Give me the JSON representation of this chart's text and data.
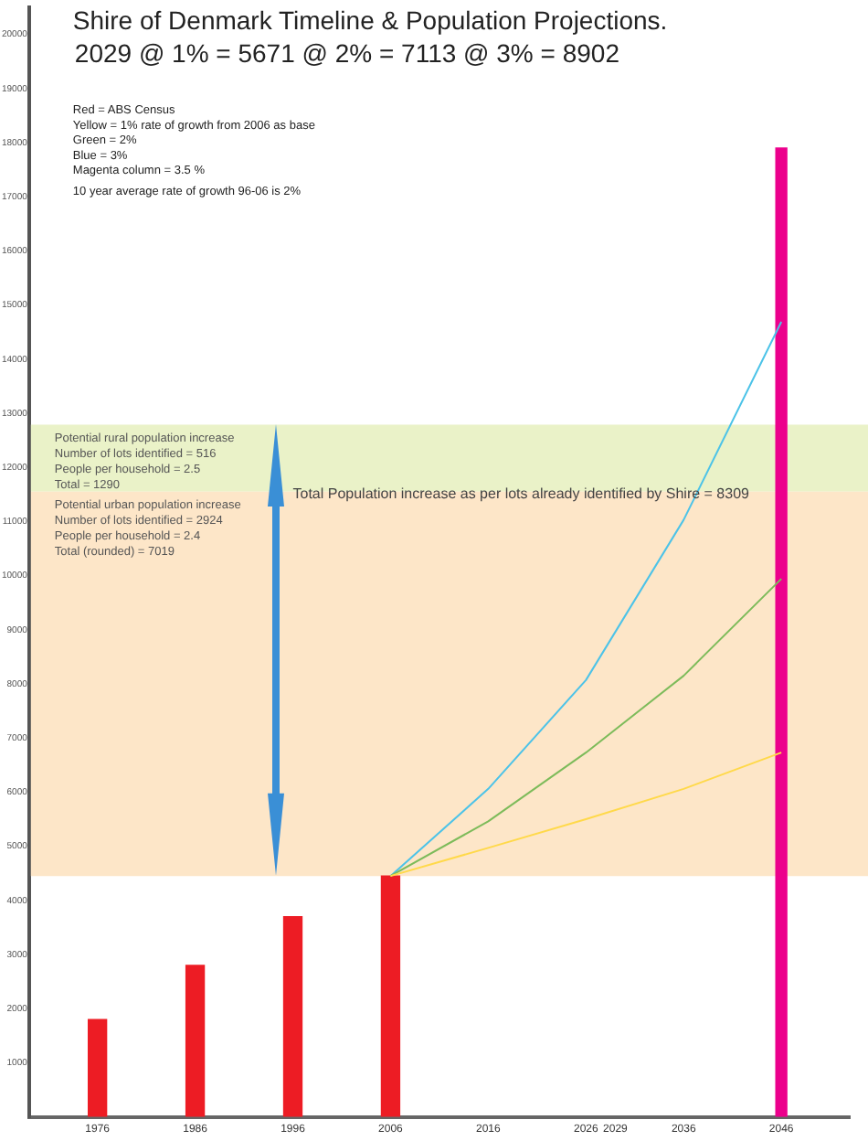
{
  "chart_data": {
    "type": "bar",
    "title": "Shire of Denmark Timeline & Population Projections.",
    "subtitle": "2029 @ 1% = 5671 @ 2% = 7113 @ 3% = 8902",
    "series": [
      {
        "color": "#ed1c24",
        "x": [
          1976,
          1986,
          1996,
          2006
        ],
        "values": [
          1800,
          2800,
          3700,
          4450
        ]
      },
      {
        "color": "#ec008c",
        "x": [
          2046
        ],
        "values": [
          17900
        ]
      },
      {
        "type": "line",
        "color": "#ffd94a",
        "x": [
          2006,
          2016,
          2026,
          2036,
          2046
        ],
        "values": [
          4450,
          4970,
          5500,
          6060,
          6730
        ]
      },
      {
        "type": "line",
        "color": "#7dbb5a",
        "x": [
          2006,
          2016,
          2026,
          2036,
          2046
        ],
        "values": [
          4450,
          5460,
          6730,
          8150,
          9940
        ]
      },
      {
        "type": "line",
        "color": "#4cc3e8",
        "x": [
          2006,
          2016,
          2026,
          2036,
          2046
        ],
        "values": [
          4450,
          6060,
          8070,
          11030,
          14690
        ]
      }
    ],
    "xlim": [
      1969,
      2053
    ],
    "xticks": [
      1976,
      1986,
      1996,
      2006,
      2016,
      2026,
      2029,
      2036,
      2046
    ],
    "ylim": [
      0,
      20500
    ],
    "yticks": [
      1000,
      2000,
      3000,
      4000,
      5000,
      6000,
      7000,
      8000,
      9000,
      10000,
      11000,
      12000,
      13000,
      14000,
      15000,
      16000,
      17000,
      18000,
      19000,
      20000
    ],
    "bands": [
      {
        "axis": "y",
        "from": 11550,
        "to": 12790,
        "color": "#eaf2c8",
        "label": "Potential rural population increase\nNumber of lots identified = 516\nPeople per household = 2.5\nTotal = 1290"
      },
      {
        "axis": "y",
        "from": 4450,
        "to": 11550,
        "color": "#fde6c8",
        "label": "Potential urban population increase\nNumber of lots identified = 2924\nPeople per household = 2.4\nTotal (rounded) = 7019"
      }
    ],
    "annotations": [
      "Red = ABS Census\nYellow = 1% rate of growth from 2006 as base\nGreen = 2%\nBlue = 3%\nMagenta column = 3.5 %",
      "10 year average rate of growth 96-06 is 2%",
      {
        "text": "Total Population increase as per lots already identified by Shire = 8309",
        "x": 1996,
        "y": 11500
      }
    ],
    "marker": "none",
    "grid": false,
    "legend": false
  }
}
